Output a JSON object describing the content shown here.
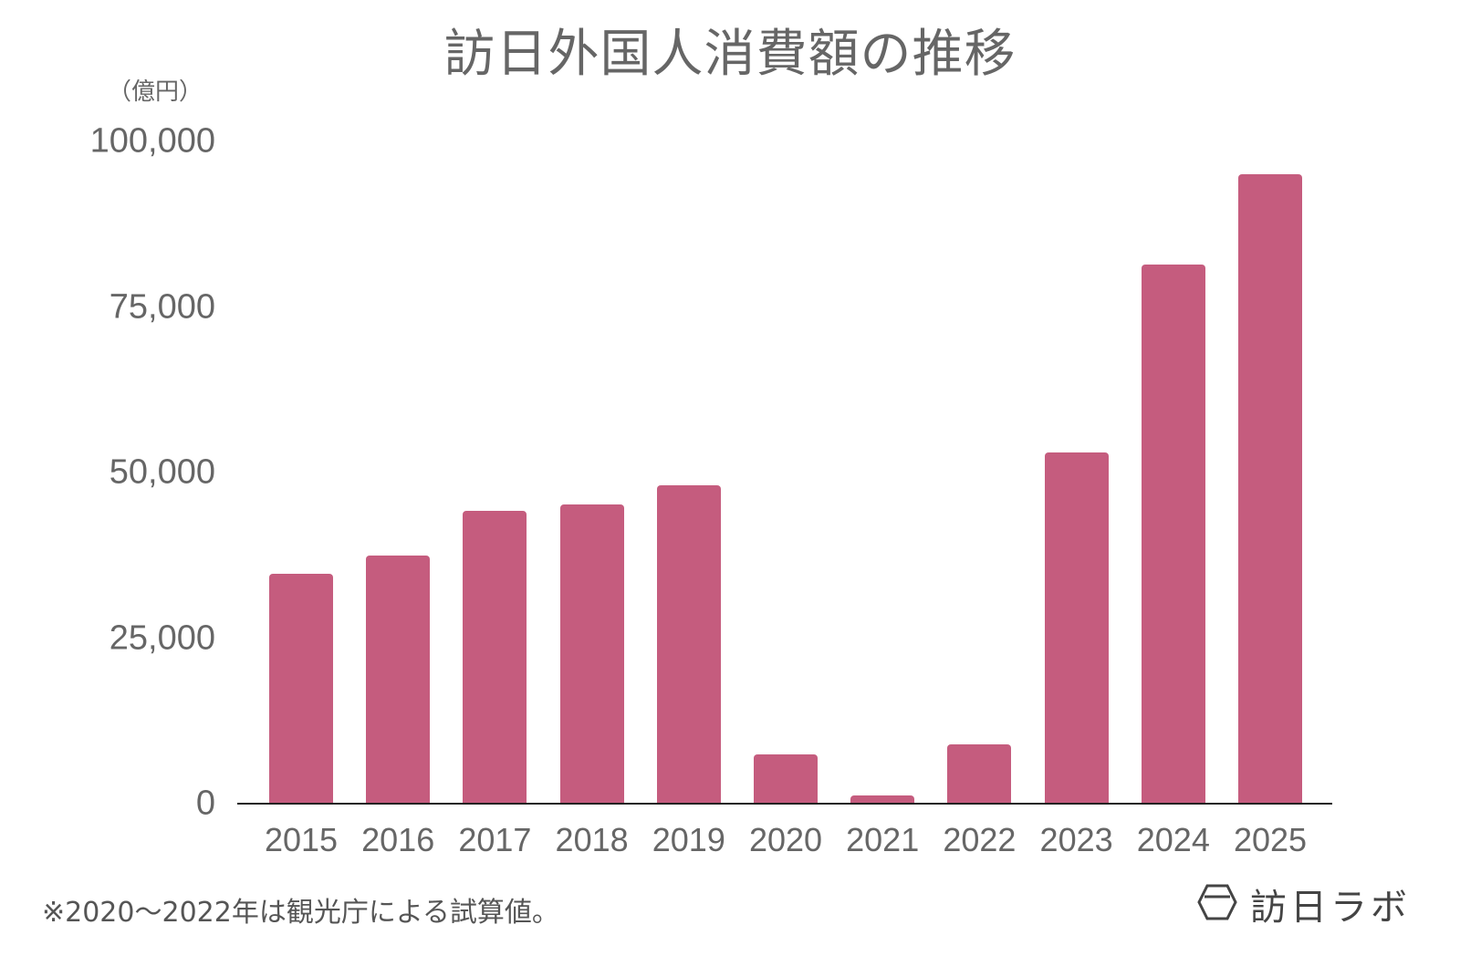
{
  "chart_data": {
    "type": "bar",
    "title": "訪日外国人消費額の推移",
    "ylabel": "（億円）",
    "xlabel": "",
    "categories": [
      "2015",
      "2016",
      "2017",
      "2018",
      "2019",
      "2020",
      "2021",
      "2022",
      "2023",
      "2024",
      "2025"
    ],
    "values": [
      34771,
      37476,
      44162,
      45189,
      48135,
      7446,
      1208,
      8987,
      53065,
      81395,
      95000
    ],
    "ylim": [
      0,
      100000
    ],
    "yticks": [
      0,
      25000,
      50000,
      75000,
      100000
    ],
    "ytick_labels": [
      "0",
      "25,000",
      "50,000",
      "75,000",
      "100,000"
    ],
    "grid": false,
    "legend": null,
    "bar_color": "#c55c7e",
    "annotations": [
      "※2020〜2022年は観光庁による試算値。"
    ]
  },
  "header": {
    "title": "訪日外国人消費額の推移",
    "unit": "（億円）"
  },
  "footer": {
    "note": "※2020〜2022年は観光庁による試算値。",
    "logo_text": "訪日ラボ"
  }
}
